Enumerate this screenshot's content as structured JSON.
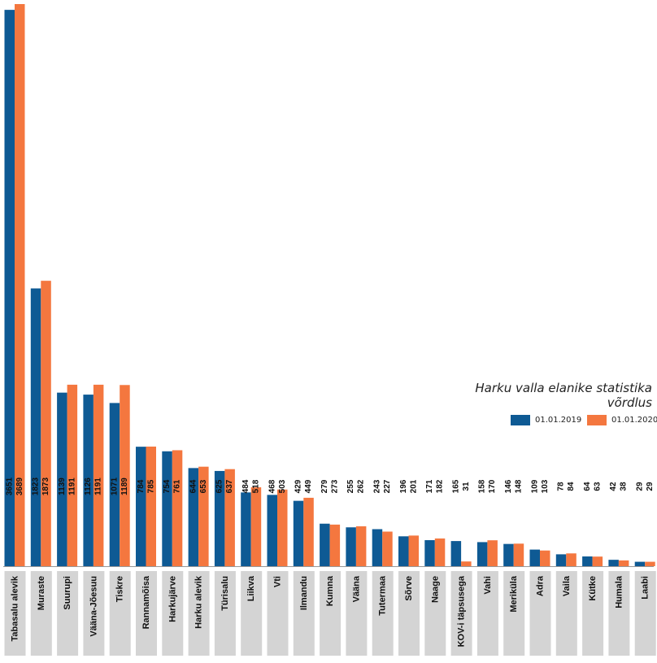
{
  "chart_data": {
    "type": "bar",
    "title": "Harku valla elanike statistika võrdlus",
    "categories": [
      "Tabasalu alevik",
      "Muraste",
      "Suurupi",
      "Vääna-Jõesuu",
      "Tiskre",
      "Rannamõisa",
      "Harkujärve",
      "Harku alevik",
      "Türisalu",
      "Liikva",
      "Vti",
      "Ilmandu",
      "Kumna",
      "Vääna",
      "Tutermaa",
      "Sõrve",
      "Naage",
      "KOV-i täpsusega",
      "Vahi",
      "Meriküla",
      "Adra",
      "Vaila",
      "Kütke",
      "Humala",
      "Laabi"
    ],
    "series": [
      {
        "name": "01.01.2019",
        "color": "#0E5A94",
        "values": [
          3651,
          1823,
          1139,
          1126,
          1071,
          784,
          754,
          644,
          625,
          484,
          468,
          429,
          279,
          255,
          243,
          196,
          171,
          165,
          158,
          146,
          109,
          78,
          64,
          42,
          29
        ]
      },
      {
        "name": "01.01.2020",
        "color": "#F4773F",
        "values": [
          3689,
          1873,
          1191,
          1191,
          1189,
          785,
          761,
          653,
          637,
          518,
          503,
          449,
          273,
          262,
          227,
          201,
          182,
          31,
          170,
          148,
          103,
          84,
          63,
          38,
          29
        ]
      }
    ],
    "ylim": [
      0,
      3689
    ],
    "legend_position": "right",
    "grid": false
  }
}
